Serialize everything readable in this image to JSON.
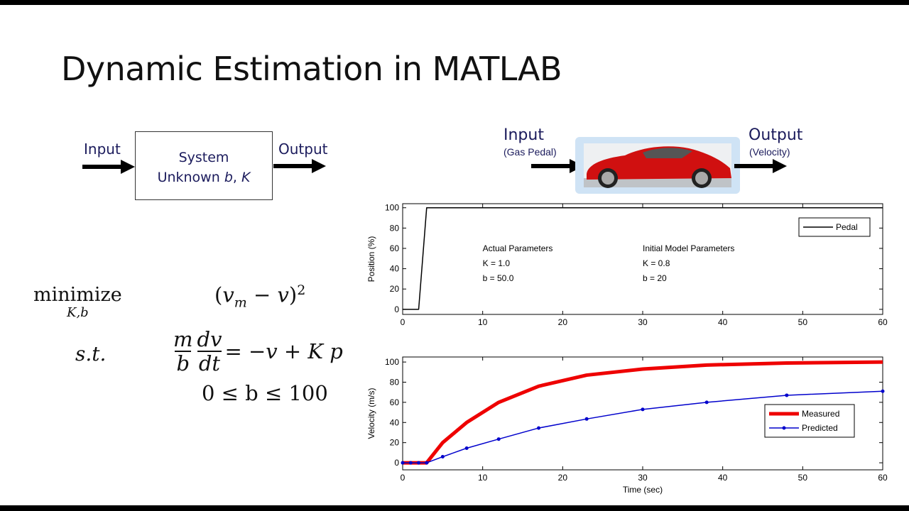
{
  "slide": {
    "title": "Dynamic Estimation in MATLAB"
  },
  "block_diagram": {
    "input_label": "Input",
    "output_label": "Output",
    "system_line1": "System",
    "system_line2_prefix": "Unknown ",
    "system_b": "b",
    "system_sep": ", ",
    "system_K": "K"
  },
  "optimization": {
    "minimize": "minimize",
    "minimize_sub": "K,b",
    "objective": "(v_m − v)^2",
    "objective_open": "(",
    "objective_v": "v",
    "objective_m": "m",
    "objective_minus": " − ",
    "objective_v2": "v",
    "objective_close": ")",
    "objective_sup": "2",
    "st": "s.t.",
    "frac1_num": "m",
    "frac1_den": "b",
    "frac2_num": "dv",
    "frac2_den": "dt",
    "ode_rhs": "= −v + K p",
    "bound": "0 ≤ b ≤ 100"
  },
  "car_diagram": {
    "input_label": "Input",
    "input_sub": "(Gas Pedal)",
    "output_label": "Output",
    "output_sub": "(Velocity)",
    "image": "red-sports-car"
  },
  "chart_data": [
    {
      "type": "line",
      "xlabel": "",
      "ylabel": "Position (%)",
      "xlim": [
        0,
        60
      ],
      "ylim": [
        -5,
        104
      ],
      "xticks": [
        "0",
        "10",
        "20",
        "30",
        "40",
        "50",
        "60"
      ],
      "yticks": [
        "0",
        "20",
        "40",
        "60",
        "80",
        "100"
      ],
      "grid": false,
      "legend": "top-right",
      "series": [
        {
          "name": "Pedal",
          "color": "#000000",
          "x": [
            0,
            2,
            3,
            60
          ],
          "y": [
            0,
            0,
            100,
            100
          ]
        }
      ],
      "annotations": [
        {
          "lines": [
            "Actual Parameters",
            "K = 1.0",
            "b = 50.0"
          ]
        },
        {
          "lines": [
            "Initial Model Parameters",
            "K = 0.8",
            "b = 20"
          ]
        }
      ]
    },
    {
      "type": "line",
      "xlabel": "Time (sec)",
      "ylabel": "Velocity (m/s)",
      "xlim": [
        0,
        60
      ],
      "ylim": [
        -7,
        105
      ],
      "xticks": [
        "0",
        "10",
        "20",
        "30",
        "40",
        "50",
        "60"
      ],
      "yticks": [
        "0",
        "20",
        "40",
        "60",
        "80",
        "100"
      ],
      "grid": false,
      "legend": "right",
      "series": [
        {
          "name": "Measured",
          "color": "#ee0000",
          "x": [
            0,
            3,
            5,
            8,
            12,
            17,
            23,
            30,
            38,
            48,
            60
          ],
          "y": [
            0,
            0,
            20,
            40,
            60,
            76,
            87,
            93,
            97,
            99,
            100
          ]
        },
        {
          "name": "Predicted",
          "color": "#0000cc",
          "x": [
            0,
            1,
            2,
            3,
            5,
            8,
            12,
            17,
            23,
            30,
            38,
            48,
            60
          ],
          "y": [
            0,
            0,
            0,
            0,
            6,
            14.5,
            23.5,
            34.5,
            43.5,
            53,
            60,
            67,
            71
          ]
        }
      ]
    }
  ]
}
